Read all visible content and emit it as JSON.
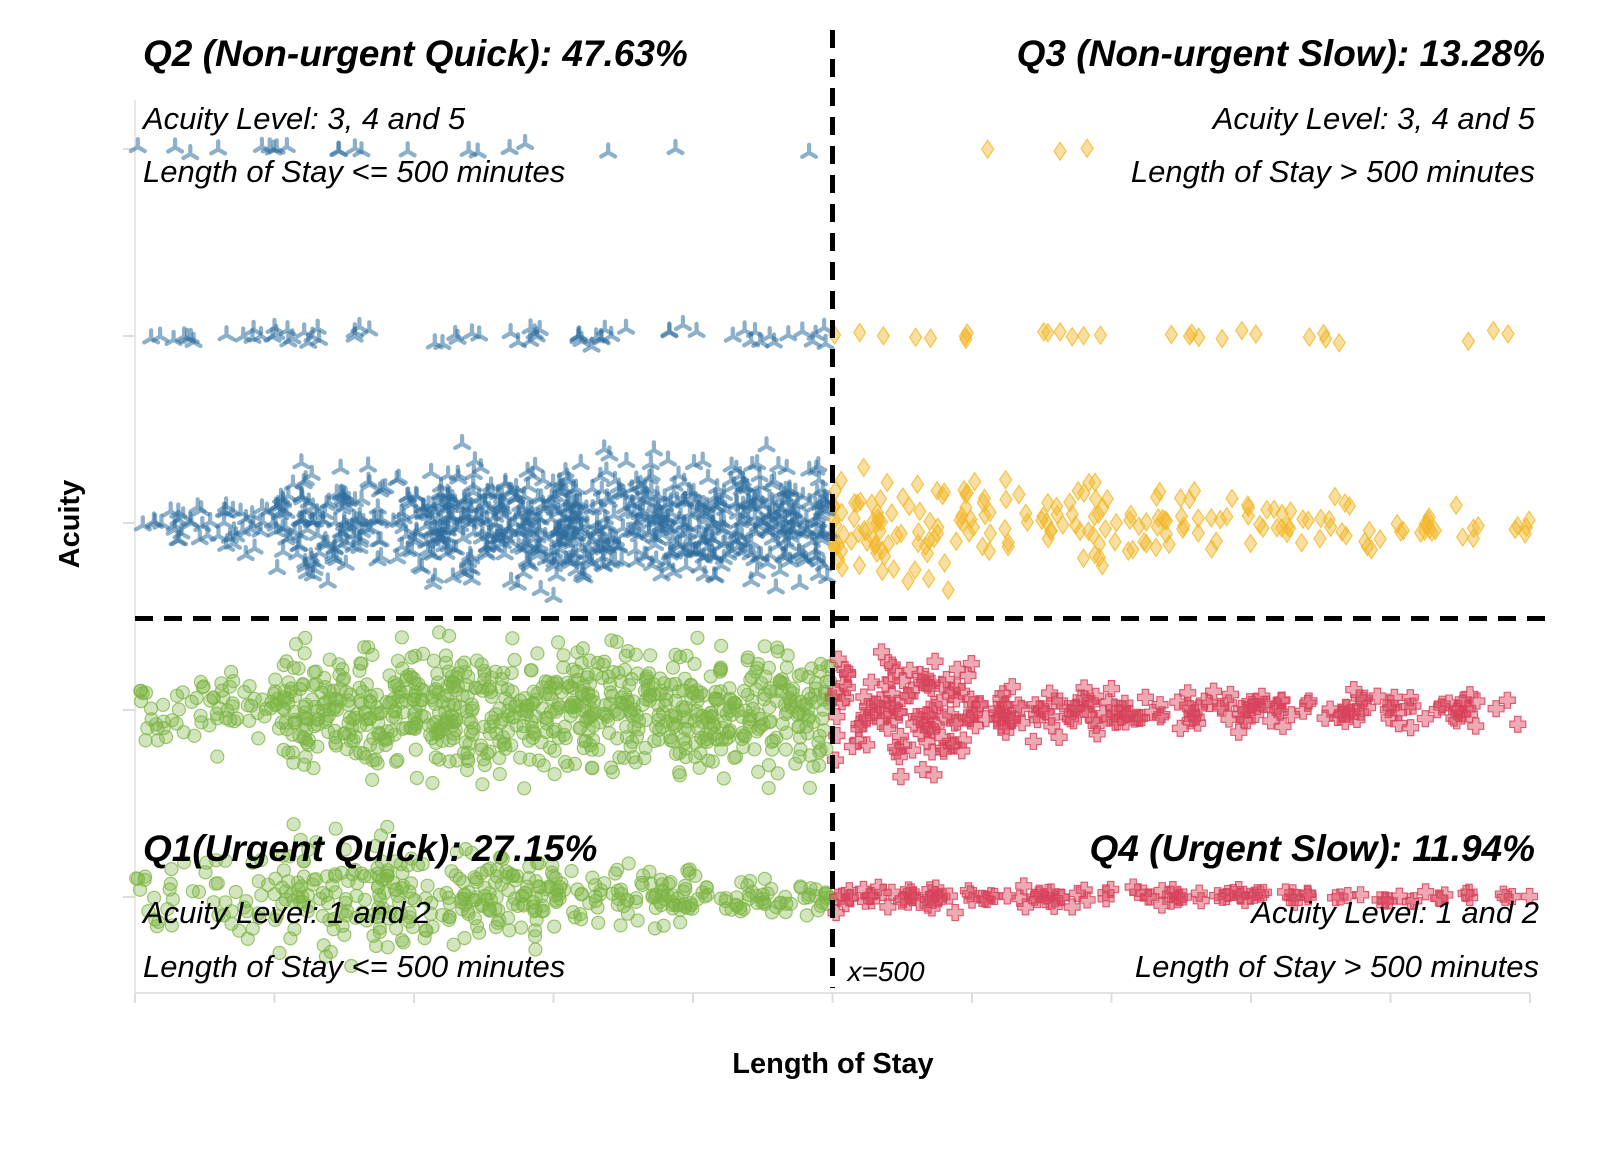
{
  "chart_data": {
    "type": "scatter",
    "title": "",
    "xlabel": "Length of Stay",
    "ylabel": "Acuity",
    "x_range": [
      0,
      1000
    ],
    "acuity_levels": [
      1,
      2,
      3,
      4,
      5
    ],
    "acuity_order_top_to_bottom": [
      5,
      4,
      3,
      2,
      1
    ],
    "grid": false,
    "thresholds": {
      "x": 500,
      "x_label": "x=500",
      "y_between_acuity": [
        2,
        3
      ]
    },
    "quadrants": [
      {
        "id": "Q2",
        "title": "Q2 (Non-urgent Quick): 47.63%",
        "percent": 47.63,
        "line1": "Acuity Level: 3, 4 and 5",
        "line2": "Length of Stay <= 500 minutes",
        "position": "top-left"
      },
      {
        "id": "Q3",
        "title": "Q3 (Non-urgent Slow): 13.28%",
        "percent": 13.28,
        "line1": "Acuity Level: 3, 4 and 5",
        "line2": "Length of Stay > 500 minutes",
        "position": "top-right"
      },
      {
        "id": "Q1",
        "title": "Q1(Urgent Quick): 27.15%",
        "percent": 27.15,
        "line1": "Acuity Level: 1 and 2",
        "line2": "Length of Stay <= 500 minutes",
        "position": "bottom-left"
      },
      {
        "id": "Q4",
        "title": "Q4 (Urgent Slow): 11.94%",
        "percent": 11.94,
        "line1": "Acuity Level: 1 and 2",
        "line2": "Length of Stay > 500 minutes",
        "position": "bottom-right"
      }
    ],
    "series": [
      {
        "quadrant": "Q2",
        "marker": "tri-star",
        "color": "#2E6E9E",
        "x_range": [
          0,
          500
        ],
        "acuity": [
          3,
          4,
          5
        ]
      },
      {
        "quadrant": "Q3",
        "marker": "diamond",
        "color": "#F2B82A",
        "x_range": [
          500,
          1000
        ],
        "acuity": [
          3,
          4,
          5
        ]
      },
      {
        "quadrant": "Q1",
        "marker": "circle",
        "color": "#7DB546",
        "x_range": [
          0,
          500
        ],
        "acuity": [
          1,
          2
        ]
      },
      {
        "quadrant": "Q4",
        "marker": "plus",
        "color": "#D8435B",
        "x_range": [
          500,
          1000
        ],
        "acuity": [
          1,
          2
        ]
      }
    ],
    "strips": [
      {
        "acuity": 5,
        "bins": [
          {
            "x": [
              0,
              100
            ],
            "n": 7,
            "spread": 0.05
          },
          {
            "x": [
              100,
              200
            ],
            "n": 7,
            "spread": 0.05
          },
          {
            "x": [
              200,
              300
            ],
            "n": 4,
            "spread": 0.05
          },
          {
            "x": [
              300,
              400
            ],
            "n": 2,
            "spread": 0.05
          },
          {
            "x": [
              400,
              500
            ],
            "n": 1,
            "spread": 0.05
          },
          {
            "x": [
              500,
              600
            ],
            "n": 0,
            "spread": 0.05
          },
          {
            "x": [
              600,
              700
            ],
            "n": 3,
            "spread": 0.03
          },
          {
            "x": [
              700,
              800
            ],
            "n": 0,
            "spread": 0.03
          },
          {
            "x": [
              800,
              900
            ],
            "n": 0,
            "spread": 0.03
          },
          {
            "x": [
              900,
              1000
            ],
            "n": 0,
            "spread": 0.03
          }
        ]
      },
      {
        "acuity": 4,
        "bins": [
          {
            "x": [
              0,
              100
            ],
            "n": 14,
            "spread": 0.08
          },
          {
            "x": [
              100,
              200
            ],
            "n": 13,
            "spread": 0.08
          },
          {
            "x": [
              200,
              300
            ],
            "n": 13,
            "spread": 0.08
          },
          {
            "x": [
              300,
              400
            ],
            "n": 14,
            "spread": 0.08
          },
          {
            "x": [
              400,
              500
            ],
            "n": 14,
            "spread": 0.08
          },
          {
            "x": [
              500,
              600
            ],
            "n": 8,
            "spread": 0.06
          },
          {
            "x": [
              600,
              700
            ],
            "n": 6,
            "spread": 0.05
          },
          {
            "x": [
              700,
              800
            ],
            "n": 6,
            "spread": 0.05
          },
          {
            "x": [
              800,
              900
            ],
            "n": 5,
            "spread": 0.05
          },
          {
            "x": [
              900,
              1000
            ],
            "n": 3,
            "spread": 0.04
          }
        ]
      },
      {
        "acuity": 3,
        "bins": [
          {
            "x": [
              0,
              100
            ],
            "n": 45,
            "spread": 0.2
          },
          {
            "x": [
              100,
              200
            ],
            "n": 135,
            "spread": 0.4
          },
          {
            "x": [
              200,
              300
            ],
            "n": 210,
            "spread": 0.46
          },
          {
            "x": [
              300,
              400
            ],
            "n": 220,
            "spread": 0.46
          },
          {
            "x": [
              400,
              500
            ],
            "n": 215,
            "spread": 0.46
          },
          {
            "x": [
              500,
              600
            ],
            "n": 75,
            "spread": 0.43
          },
          {
            "x": [
              600,
              700
            ],
            "n": 48,
            "spread": 0.33
          },
          {
            "x": [
              700,
              800
            ],
            "n": 38,
            "spread": 0.26
          },
          {
            "x": [
              800,
              900
            ],
            "n": 28,
            "spread": 0.2
          },
          {
            "x": [
              900,
              1000
            ],
            "n": 22,
            "spread": 0.16
          }
        ]
      },
      {
        "acuity": 2,
        "bins": [
          {
            "x": [
              0,
              100
            ],
            "n": 65,
            "spread": 0.3
          },
          {
            "x": [
              100,
              200
            ],
            "n": 200,
            "spread": 0.46
          },
          {
            "x": [
              200,
              300
            ],
            "n": 215,
            "spread": 0.47
          },
          {
            "x": [
              300,
              400
            ],
            "n": 210,
            "spread": 0.47
          },
          {
            "x": [
              400,
              500
            ],
            "n": 200,
            "spread": 0.47
          },
          {
            "x": [
              500,
              600
            ],
            "n": 110,
            "spread": 0.42
          },
          {
            "x": [
              600,
              700
            ],
            "n": 60,
            "spread": 0.22
          },
          {
            "x": [
              700,
              800
            ],
            "n": 45,
            "spread": 0.15
          },
          {
            "x": [
              800,
              900
            ],
            "n": 40,
            "spread": 0.14
          },
          {
            "x": [
              900,
              1000
            ],
            "n": 30,
            "spread": 0.12
          }
        ]
      },
      {
        "acuity": 1,
        "bins": [
          {
            "x": [
              0,
              100
            ],
            "n": 45,
            "spread": 0.35
          },
          {
            "x": [
              100,
              200
            ],
            "n": 130,
            "spread": 0.45
          },
          {
            "x": [
              200,
              300
            ],
            "n": 120,
            "spread": 0.35
          },
          {
            "x": [
              300,
              400
            ],
            "n": 90,
            "spread": 0.22
          },
          {
            "x": [
              400,
              500
            ],
            "n": 60,
            "spread": 0.14
          },
          {
            "x": [
              500,
              600
            ],
            "n": 40,
            "spread": 0.1
          },
          {
            "x": [
              600,
              700
            ],
            "n": 28,
            "spread": 0.07
          },
          {
            "x": [
              700,
              800
            ],
            "n": 26,
            "spread": 0.06
          },
          {
            "x": [
              800,
              900
            ],
            "n": 20,
            "spread": 0.05
          },
          {
            "x": [
              900,
              1000
            ],
            "n": 14,
            "spread": 0.04
          }
        ]
      }
    ]
  }
}
